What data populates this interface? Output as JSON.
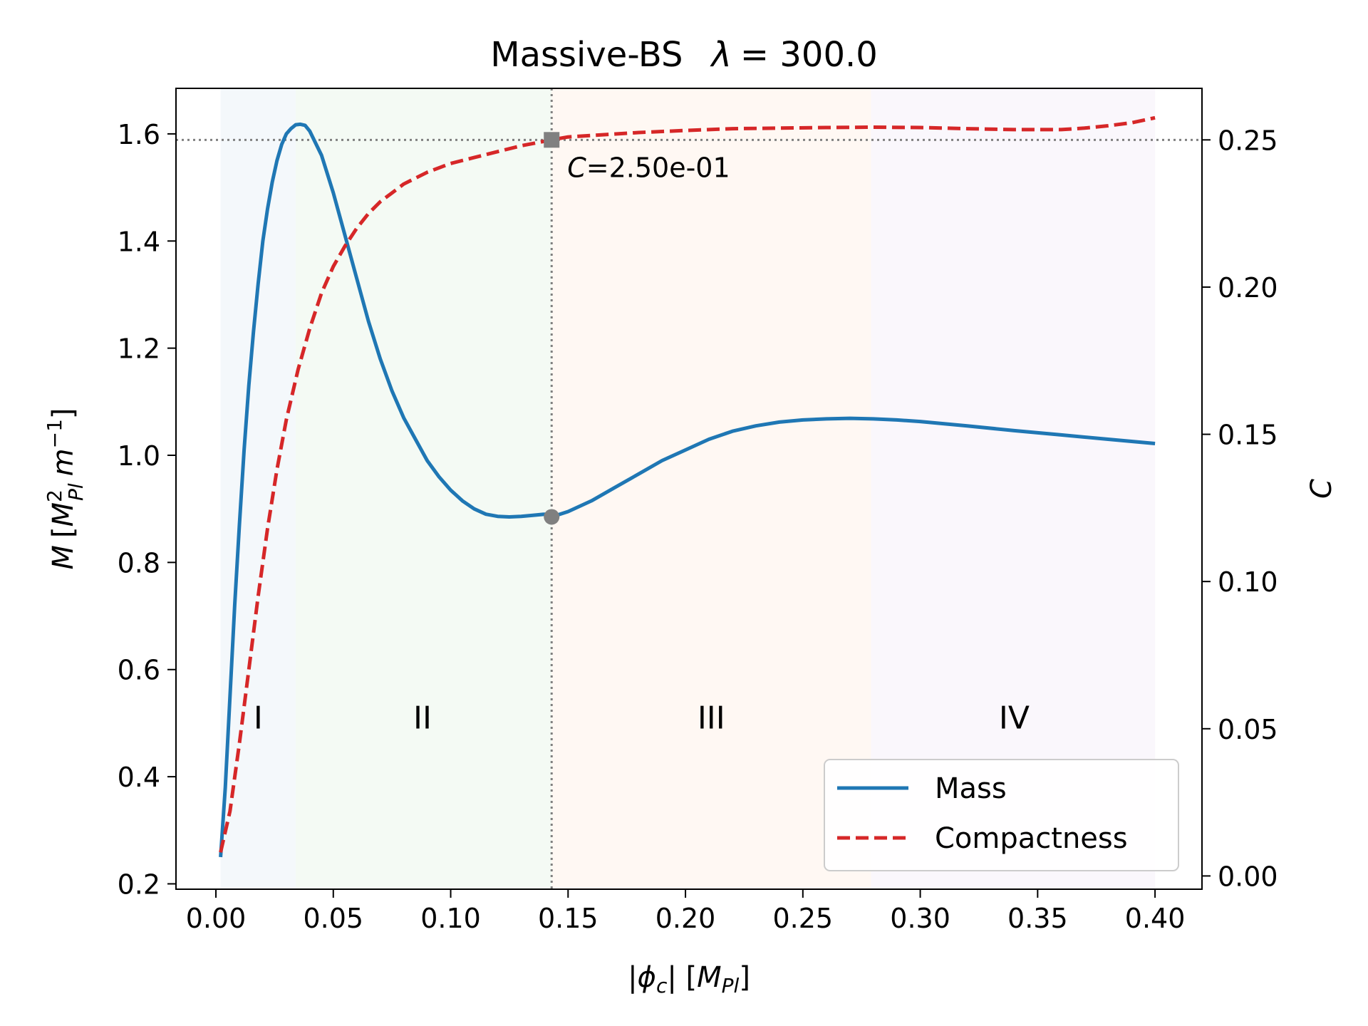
{
  "chart_data": {
    "type": "line",
    "title_main": "Massive-BS",
    "title_lambda_symbol": "λ",
    "title_lambda_value": "= 300.0",
    "xlabel_prefix": "|",
    "xlabel_symbol": "ϕ",
    "xlabel_sub": "c",
    "xlabel_suffix": "| [",
    "xlabel_unit": "M",
    "xlabel_unit_sub": "Pl",
    "xlabel_close": "]",
    "ylabel_left_symbol": "M",
    "ylabel_left_open": "[",
    "ylabel_left_unit": "M",
    "ylabel_left_unit_sup": "2",
    "ylabel_left_unit_sub": "Pl",
    "ylabel_left_m": "m",
    "ylabel_left_m_sup": "−1",
    "ylabel_left_close": "]",
    "ylabel_right": "C",
    "xlim": [
      -0.017,
      0.42
    ],
    "ylim_left": [
      0.19,
      1.685
    ],
    "ylim_right": [
      -0.0045,
      0.2675
    ],
    "xticks": [
      0.0,
      0.05,
      0.1,
      0.15,
      0.2,
      0.25,
      0.3,
      0.35,
      0.4
    ],
    "xtick_labels": [
      "0.00",
      "0.05",
      "0.10",
      "0.15",
      "0.20",
      "0.25",
      "0.30",
      "0.35",
      "0.40"
    ],
    "yticks_left": [
      0.2,
      0.4,
      0.6,
      0.8,
      1.0,
      1.2,
      1.4,
      1.6
    ],
    "ytick_labels_left": [
      "0.2",
      "0.4",
      "0.6",
      "0.8",
      "1.0",
      "1.2",
      "1.4",
      "1.6"
    ],
    "yticks_right": [
      0.0,
      0.05,
      0.1,
      0.15,
      0.2,
      0.25
    ],
    "ytick_labels_right": [
      "0.00",
      "0.05",
      "0.10",
      "0.15",
      "0.20",
      "0.25"
    ],
    "regions": [
      {
        "label": "I",
        "x0": 0.002,
        "x1": 0.034,
        "label_x": 0.018,
        "color": "#1f77b4"
      },
      {
        "label": "II",
        "x0": 0.034,
        "x1": 0.143,
        "label_x": 0.088,
        "color": "#2ca02c"
      },
      {
        "label": "III",
        "x0": 0.143,
        "x1": 0.279,
        "label_x": 0.211,
        "color": "#ff7f0e"
      },
      {
        "label": "IV",
        "x0": 0.279,
        "x1": 0.4,
        "label_x": 0.34,
        "color": "#9467bd"
      }
    ],
    "region_label_y": 0.49,
    "series": [
      {
        "name": "Mass",
        "axis": "left",
        "color": "#1f77b4",
        "style": "solid",
        "x": [
          0.002,
          0.004,
          0.006,
          0.008,
          0.01,
          0.012,
          0.014,
          0.016,
          0.018,
          0.02,
          0.022,
          0.024,
          0.026,
          0.028,
          0.03,
          0.032,
          0.034,
          0.036,
          0.038,
          0.04,
          0.045,
          0.05,
          0.055,
          0.06,
          0.065,
          0.07,
          0.075,
          0.08,
          0.085,
          0.09,
          0.095,
          0.1,
          0.105,
          0.11,
          0.115,
          0.12,
          0.125,
          0.13,
          0.135,
          0.14,
          0.143,
          0.15,
          0.16,
          0.17,
          0.18,
          0.19,
          0.2,
          0.21,
          0.22,
          0.23,
          0.24,
          0.25,
          0.26,
          0.27,
          0.28,
          0.29,
          0.3,
          0.32,
          0.34,
          0.36,
          0.38,
          0.4
        ],
        "values": [
          0.25,
          0.38,
          0.55,
          0.72,
          0.87,
          1.01,
          1.13,
          1.23,
          1.32,
          1.4,
          1.46,
          1.51,
          1.55,
          1.58,
          1.6,
          1.61,
          1.617,
          1.618,
          1.616,
          1.605,
          1.56,
          1.49,
          1.41,
          1.33,
          1.25,
          1.18,
          1.12,
          1.07,
          1.03,
          0.99,
          0.96,
          0.935,
          0.915,
          0.9,
          0.89,
          0.886,
          0.885,
          0.886,
          0.888,
          0.89,
          0.885,
          0.895,
          0.915,
          0.94,
          0.965,
          0.99,
          1.01,
          1.03,
          1.045,
          1.055,
          1.062,
          1.066,
          1.068,
          1.069,
          1.068,
          1.066,
          1.063,
          1.055,
          1.046,
          1.038,
          1.03,
          1.022
        ]
      },
      {
        "name": "Compactness",
        "axis": "right",
        "color": "#d62728",
        "style": "dashed",
        "x": [
          0.002,
          0.006,
          0.01,
          0.014,
          0.018,
          0.022,
          0.026,
          0.03,
          0.035,
          0.04,
          0.045,
          0.05,
          0.055,
          0.06,
          0.065,
          0.07,
          0.075,
          0.08,
          0.09,
          0.1,
          0.11,
          0.12,
          0.13,
          0.143,
          0.15,
          0.16,
          0.18,
          0.2,
          0.22,
          0.24,
          0.26,
          0.28,
          0.3,
          0.32,
          0.34,
          0.36,
          0.37,
          0.38,
          0.39,
          0.4
        ],
        "values": [
          0.008,
          0.022,
          0.045,
          0.07,
          0.095,
          0.118,
          0.138,
          0.155,
          0.172,
          0.186,
          0.198,
          0.207,
          0.214,
          0.22,
          0.225,
          0.229,
          0.232,
          0.235,
          0.239,
          0.242,
          0.244,
          0.246,
          0.248,
          0.25,
          0.251,
          0.2515,
          0.2525,
          0.2532,
          0.2538,
          0.254,
          0.2542,
          0.2543,
          0.2542,
          0.2538,
          0.2535,
          0.2535,
          0.254,
          0.2548,
          0.2558,
          0.2575
        ]
      }
    ],
    "marker_x": 0.143,
    "marker_mass": 0.885,
    "marker_c": 0.25,
    "annotation_symbol": "C",
    "annotation_value": "=2.50e-01",
    "legend_position": "lower right"
  }
}
